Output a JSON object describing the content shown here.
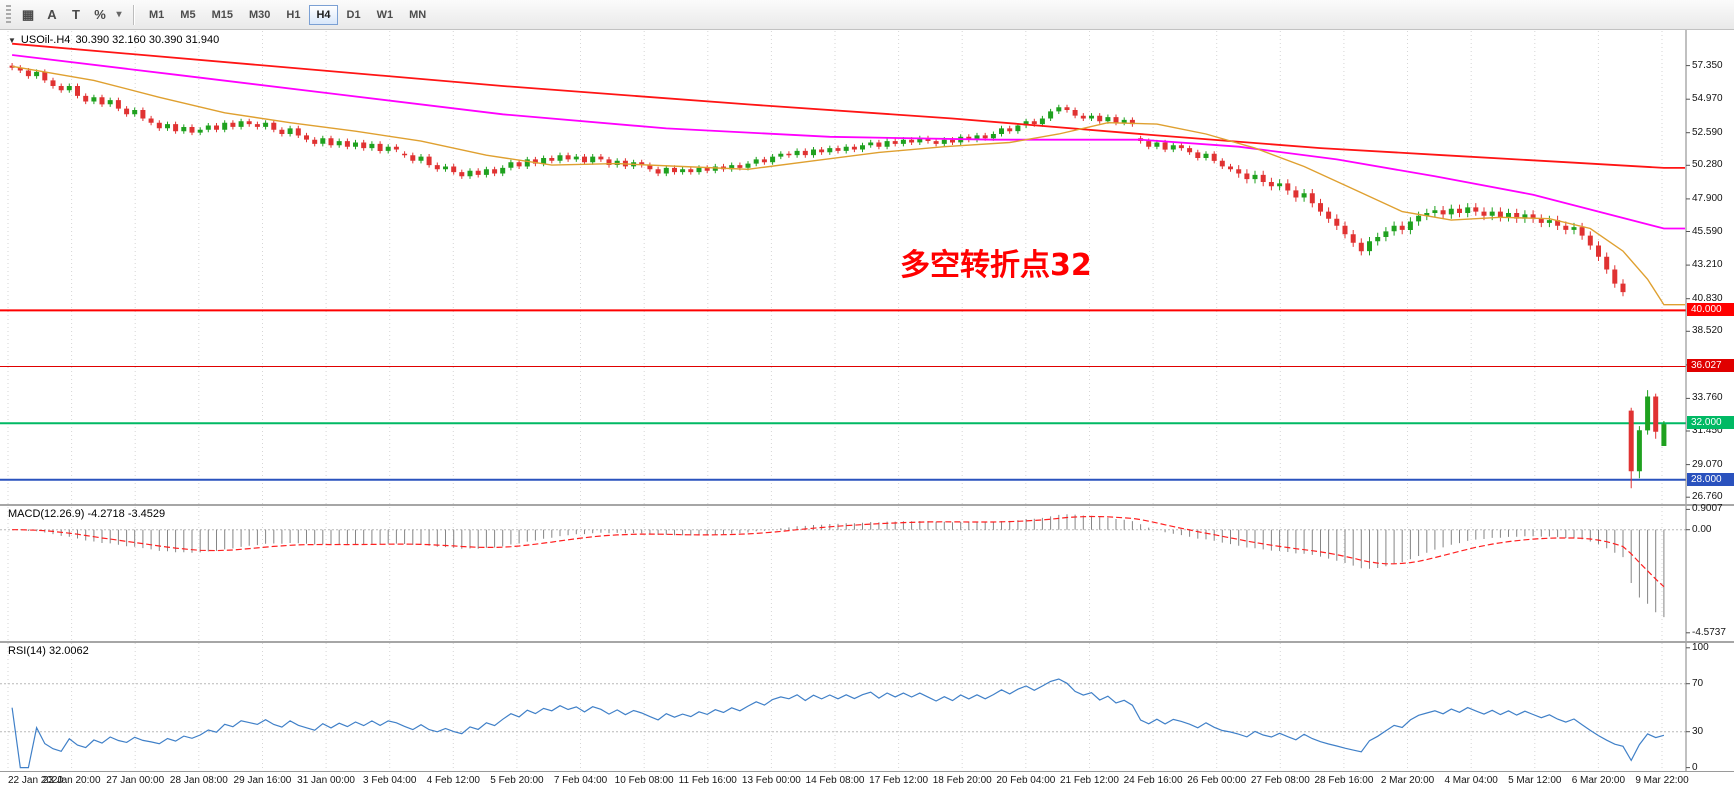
{
  "toolbar": {
    "tools": [
      {
        "name": "chart-objects-grid-icon",
        "glyph": "▦"
      },
      {
        "name": "text-label-tool-icon",
        "glyph": "A"
      },
      {
        "name": "text-frame-tool-icon",
        "glyph": "T"
      },
      {
        "name": "percent-measure-tool-icon",
        "glyph": "%"
      },
      {
        "name": "tool-dropdown-caret-icon",
        "glyph": "▾"
      }
    ],
    "timeframes": [
      "M1",
      "M5",
      "M15",
      "M30",
      "H1",
      "H4",
      "D1",
      "W1",
      "MN"
    ],
    "active_timeframe": "H4"
  },
  "chart": {
    "symbol_period": "USOil-.H4",
    "ohlc": "30.390 32.160 30.390 31.940"
  },
  "chart_data": {
    "type": "candlestick",
    "symbol": "USOil-",
    "timeframe": "H4",
    "title": "USOil-.H4 30.390 32.160 30.390 31.940",
    "price_axis_ticks": [
      "57.350",
      "54.970",
      "52.590",
      "50.280",
      "47.900",
      "45.590",
      "43.210",
      "40.830",
      "38.520",
      "36.140",
      "33.760",
      "31.450",
      "29.070",
      "26.760"
    ],
    "ylim": [
      26.35,
      59.8
    ],
    "x_labels": [
      "22 Jan 2020",
      "23 Jan 20:00",
      "27 Jan 00:00",
      "28 Jan 08:00",
      "29 Jan 16:00",
      "31 Jan 00:00",
      "3 Feb 04:00",
      "4 Feb 12:00",
      "5 Feb 20:00",
      "7 Feb 04:00",
      "10 Feb 08:00",
      "11 Feb 16:00",
      "13 Feb 00:00",
      "14 Feb 08:00",
      "17 Feb 12:00",
      "18 Feb 20:00",
      "20 Feb 04:00",
      "21 Feb 12:00",
      "24 Feb 16:00",
      "26 Feb 00:00",
      "27 Feb 08:00",
      "28 Feb 16:00",
      "2 Mar 20:00",
      "4 Mar 04:00",
      "5 Mar 12:00",
      "6 Mar 20:00",
      "9 Mar 22:00"
    ],
    "opens_start": 57.35,
    "closes": [
      57.2,
      57.0,
      56.6,
      56.9,
      56.3,
      55.9,
      55.6,
      55.9,
      55.2,
      54.8,
      55.1,
      54.6,
      54.9,
      54.3,
      53.9,
      54.2,
      53.6,
      53.3,
      52.9,
      53.2,
      52.7,
      53.0,
      52.6,
      52.8,
      53.1,
      52.8,
      53.3,
      53.0,
      53.4,
      53.2,
      53.0,
      53.3,
      52.8,
      52.5,
      52.9,
      52.4,
      52.1,
      51.8,
      52.2,
      51.7,
      52.0,
      51.6,
      51.9,
      51.5,
      51.8,
      51.3,
      51.6,
      51.4,
      51.0,
      50.6,
      50.9,
      50.3,
      50.0,
      50.2,
      49.8,
      49.5,
      49.9,
      49.6,
      50.0,
      49.7,
      50.1,
      50.5,
      50.2,
      50.7,
      50.4,
      50.8,
      50.6,
      51.0,
      50.7,
      50.9,
      50.5,
      50.9,
      50.7,
      50.3,
      50.6,
      50.2,
      50.5,
      50.3,
      50.0,
      49.7,
      50.1,
      49.8,
      50.0,
      49.8,
      50.1,
      49.9,
      50.2,
      50.0,
      50.3,
      50.1,
      50.4,
      50.7,
      50.5,
      50.9,
      51.1,
      51.0,
      51.3,
      51.0,
      51.4,
      51.2,
      51.5,
      51.3,
      51.6,
      51.4,
      51.7,
      51.9,
      51.6,
      52.0,
      51.8,
      52.1,
      51.9,
      52.2,
      52.0,
      51.8,
      52.1,
      51.9,
      52.3,
      52.1,
      52.4,
      52.2,
      52.5,
      52.9,
      52.7,
      53.1,
      53.4,
      53.2,
      53.6,
      54.1,
      54.4,
      54.2,
      53.8,
      53.6,
      53.8,
      53.4,
      53.7,
      53.3,
      53.5,
      53.2,
      52.0,
      51.6,
      51.9,
      51.4,
      51.7,
      51.5,
      51.2,
      50.8,
      51.1,
      50.6,
      50.2,
      50.0,
      49.7,
      49.3,
      49.6,
      49.1,
      48.8,
      49.0,
      48.5,
      48.0,
      48.3,
      47.6,
      47.0,
      46.5,
      46.0,
      45.4,
      44.8,
      44.2,
      44.9,
      45.2,
      45.6,
      46.0,
      45.7,
      46.3,
      46.7,
      46.9,
      47.1,
      46.8,
      47.2,
      46.9,
      47.3,
      47.0,
      46.7,
      47.0,
      46.6,
      46.9,
      46.5,
      46.8,
      46.5,
      46.2,
      46.4,
      46.0,
      45.7,
      45.9,
      45.3,
      44.6,
      43.8,
      42.9,
      41.9,
      41.3,
      28.6,
      31.5,
      33.9,
      31.4,
      31.94
    ],
    "gap_opens": {
      "48": 51.1,
      "138": 52.2,
      "198": 32.9
    },
    "wick": 0.18,
    "wick_wide_from": 150,
    "wick_wide": 0.3,
    "ohlc_overrides": {
      "198": [
        32.9,
        33.1,
        27.4,
        28.6
      ],
      "199": [
        28.6,
        31.8,
        28.1,
        31.5
      ],
      "200": [
        31.5,
        34.35,
        31.2,
        33.9
      ],
      "201": [
        33.9,
        34.1,
        30.9,
        31.4
      ],
      "202": [
        30.39,
        32.16,
        30.39,
        31.94
      ]
    },
    "colors": {
      "up": "#1fa11f",
      "down": "#e03232",
      "grid": "#d6d6d6",
      "axis_line": "#808080",
      "tick_mark": "#555555"
    },
    "moving_averages": [
      {
        "name": "slow-ma",
        "color": "#ff1414",
        "width": 1.8,
        "points": [
          [
            0,
            58.9
          ],
          [
            30,
            57.4
          ],
          [
            60,
            55.9
          ],
          [
            90,
            54.6
          ],
          [
            115,
            53.6
          ],
          [
            140,
            52.4
          ],
          [
            160,
            51.5
          ],
          [
            175,
            51.0
          ],
          [
            190,
            50.5
          ],
          [
            202,
            50.1
          ]
        ]
      },
      {
        "name": "mid-ma",
        "color": "#ff00ff",
        "width": 1.8,
        "points": [
          [
            0,
            58.1
          ],
          [
            20,
            56.7
          ],
          [
            40,
            55.3
          ],
          [
            60,
            53.9
          ],
          [
            80,
            52.9
          ],
          [
            100,
            52.3
          ],
          [
            120,
            52.1
          ],
          [
            138,
            52.1
          ],
          [
            150,
            51.6
          ],
          [
            162,
            50.7
          ],
          [
            174,
            49.5
          ],
          [
            186,
            48.2
          ],
          [
            194,
            47.0
          ],
          [
            202,
            45.8
          ]
        ]
      },
      {
        "name": "fast-ma",
        "color": "#dfa030",
        "width": 1.4,
        "points": [
          [
            0,
            57.3
          ],
          [
            10,
            56.3
          ],
          [
            18,
            55.1
          ],
          [
            26,
            54.0
          ],
          [
            34,
            53.3
          ],
          [
            42,
            52.7
          ],
          [
            50,
            52.0
          ],
          [
            58,
            51.0
          ],
          [
            66,
            50.3
          ],
          [
            74,
            50.4
          ],
          [
            82,
            50.2
          ],
          [
            90,
            50.0
          ],
          [
            98,
            50.6
          ],
          [
            106,
            51.2
          ],
          [
            114,
            51.6
          ],
          [
            122,
            51.9
          ],
          [
            128,
            52.5
          ],
          [
            134,
            53.3
          ],
          [
            140,
            53.2
          ],
          [
            146,
            52.5
          ],
          [
            152,
            51.5
          ],
          [
            158,
            50.2
          ],
          [
            164,
            48.6
          ],
          [
            170,
            47.0
          ],
          [
            176,
            46.4
          ],
          [
            182,
            46.6
          ],
          [
            188,
            46.5
          ],
          [
            193,
            45.8
          ],
          [
            197,
            44.2
          ],
          [
            200,
            42.2
          ],
          [
            202,
            40.4
          ]
        ]
      }
    ],
    "hlines": [
      {
        "label": "40.000",
        "value": 40.0,
        "color": "#ff0000",
        "width": 2
      },
      {
        "label": "36.027",
        "value": 36.027,
        "color": "#e00000",
        "width": 1
      },
      {
        "label": "32.000",
        "value": 32.0,
        "color": "#00b964",
        "width": 2
      },
      {
        "label": "28.000",
        "value": 28.0,
        "color": "#2a52be",
        "width": 2
      }
    ],
    "annotation": {
      "text": "多空转折点32",
      "color": "#ff0000"
    },
    "macd": {
      "label": "MACD(12.26.9) -4.2718 -3.4529",
      "fast": 12,
      "slow": 26,
      "signal": 9,
      "value": "-4.2718",
      "signal_value": "-3.4529",
      "axis_ticks": [
        "0.9007",
        "0.00",
        "-4.5737"
      ],
      "tick_values": [
        0.9007,
        0,
        -4.5737
      ],
      "histogram_color": "#858585",
      "signal_color": "#ff2020"
    },
    "rsi": {
      "label": "RSI(14) 32.0062",
      "period": 14,
      "value": "32.0062",
      "axis_ticks": [
        "100",
        "70",
        "30",
        "0"
      ],
      "tick_values": [
        100,
        70,
        30,
        0
      ],
      "levels": [
        70,
        30
      ],
      "line_color": "#4080c8"
    }
  }
}
